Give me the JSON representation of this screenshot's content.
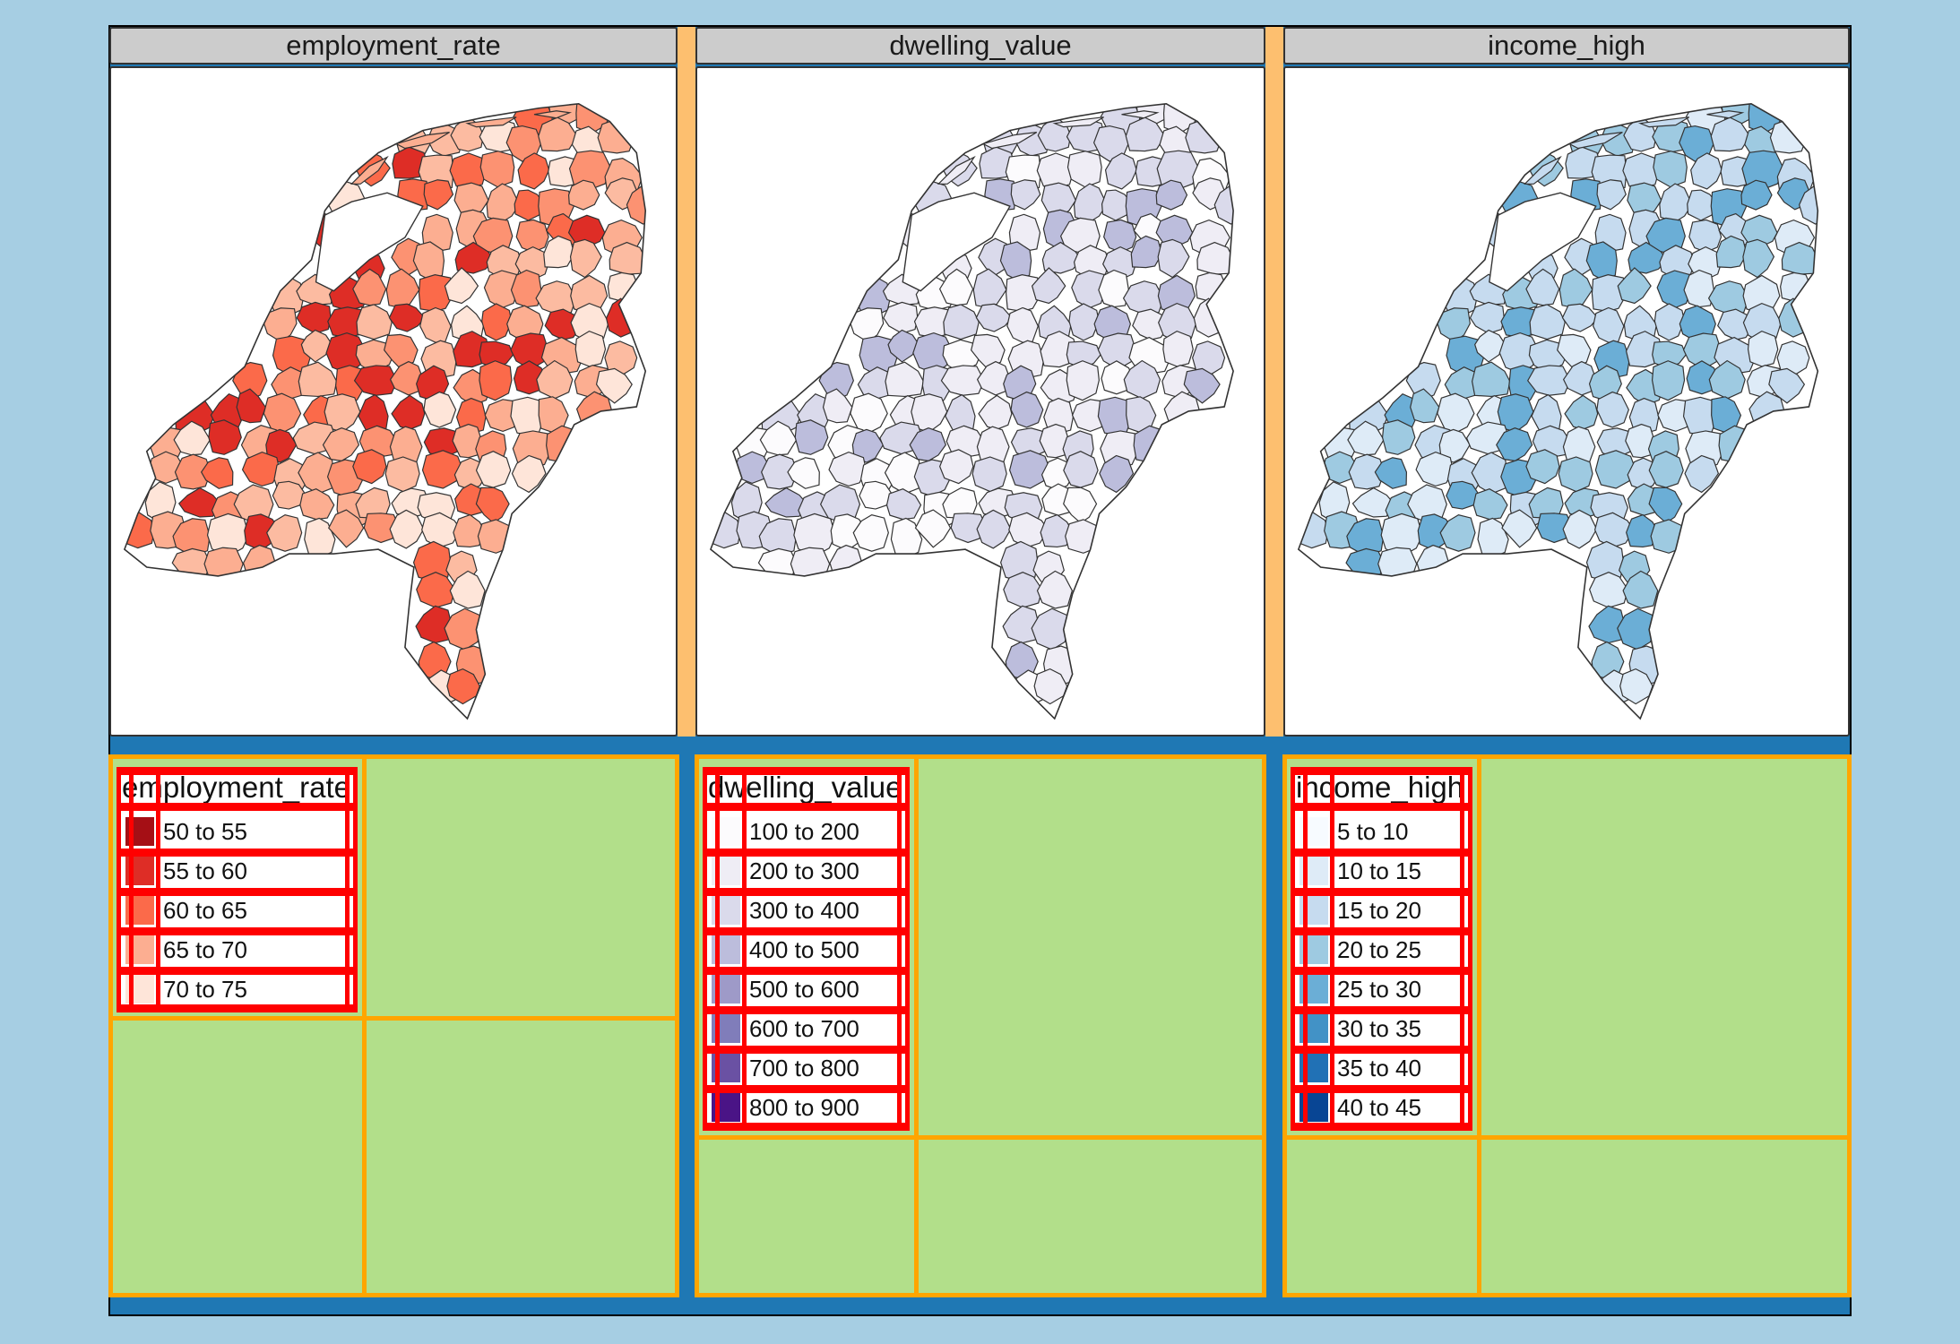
{
  "colors": {
    "background": "#a6cee3",
    "frame": "#1f78b4",
    "gap": "#fdbf6f",
    "legend_bg": "#b2df8a",
    "cell_border": "#ffa500",
    "grid_lines": "#ff0000",
    "header_bg": "#cccccc"
  },
  "panels": [
    {
      "header": "employment_rate",
      "legend_title": "employment_rate",
      "palette": "reds",
      "legend": [
        {
          "label": "50 to 55",
          "color": "#a50f15"
        },
        {
          "label": "55 to 60",
          "color": "#de2d26"
        },
        {
          "label": "60 to 65",
          "color": "#fb6a4a"
        },
        {
          "label": "65 to 70",
          "color": "#fcae91"
        },
        {
          "label": "70 to 75",
          "color": "#fee5d9"
        }
      ],
      "map_fills": [
        "#fcae91",
        "#fb6a4a",
        "#fcbba1",
        "#de2d26",
        "#fee5d9",
        "#fc9272"
      ]
    },
    {
      "header": "dwelling_value",
      "legend_title": "dwelling_value",
      "palette": "purples",
      "legend": [
        {
          "label": "100 to 200",
          "color": "#fcfbfd"
        },
        {
          "label": "200 to 300",
          "color": "#efedf5"
        },
        {
          "label": "300 to 400",
          "color": "#dadaeb"
        },
        {
          "label": "400 to 500",
          "color": "#bcbddc"
        },
        {
          "label": "500 to 600",
          "color": "#9e9ac8"
        },
        {
          "label": "600 to 700",
          "color": "#807dba"
        },
        {
          "label": "700 to 800",
          "color": "#6a51a3"
        },
        {
          "label": "800 to 900",
          "color": "#4a1486"
        }
      ],
      "map_fills": [
        "#efedf5",
        "#efedf5",
        "#dadaeb",
        "#fcfbfd",
        "#dadaeb",
        "#bcbddc"
      ]
    },
    {
      "header": "income_high",
      "legend_title": "income_high",
      "palette": "blues",
      "legend": [
        {
          "label": "5 to 10",
          "color": "#f7fbff"
        },
        {
          "label": "10 to 15",
          "color": "#deebf7"
        },
        {
          "label": "15 to 20",
          "color": "#c6dbef"
        },
        {
          "label": "20 to 25",
          "color": "#9ecae1"
        },
        {
          "label": "25 to 30",
          "color": "#6baed6"
        },
        {
          "label": "30 to 35",
          "color": "#4292c6"
        },
        {
          "label": "35 to 40",
          "color": "#2171b5"
        },
        {
          "label": "40 to 45",
          "color": "#084594"
        }
      ],
      "map_fills": [
        "#c6dbef",
        "#deebf7",
        "#9ecae1",
        "#c6dbef",
        "#6baed6",
        "#9ecae1"
      ]
    }
  ]
}
